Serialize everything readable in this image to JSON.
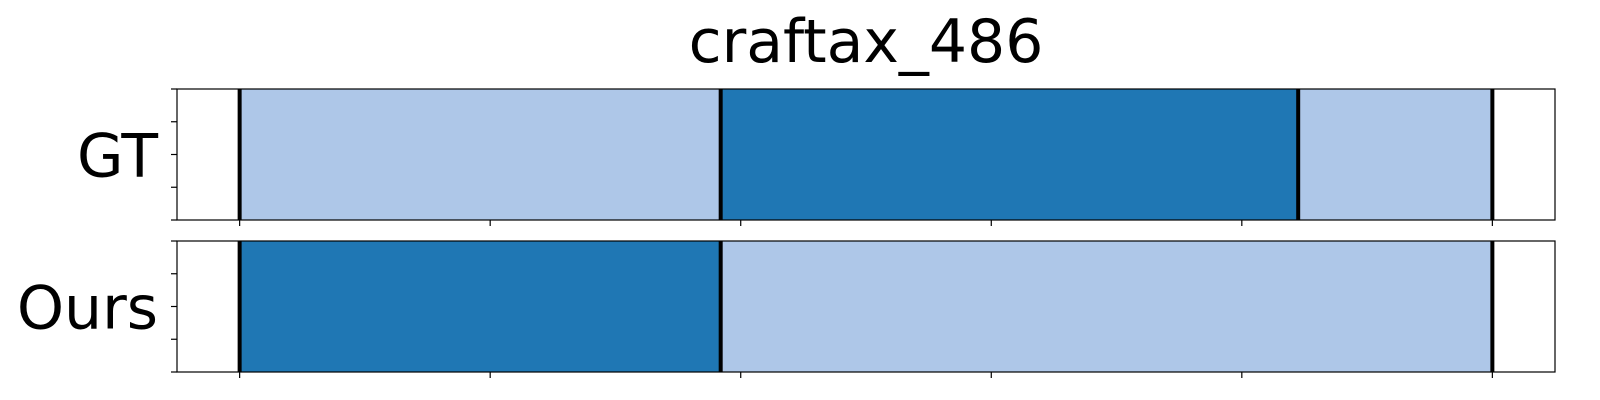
{
  "chart_data": {
    "type": "bar",
    "title": "craftax_486",
    "orientation": "horizontal-timeline",
    "xlim": [
      -0.5,
      10.5
    ],
    "rows": [
      {
        "label": "GT",
        "segments": [
          {
            "start": 0.0,
            "end": 3.84,
            "color": "#aec7e8"
          },
          {
            "start": 3.84,
            "end": 8.45,
            "color": "#1f77b4"
          },
          {
            "start": 8.45,
            "end": 10.0,
            "color": "#aec7e8"
          }
        ],
        "boundaries": [
          0.0,
          3.84,
          8.45,
          10.0
        ]
      },
      {
        "label": "Ours",
        "segments": [
          {
            "start": 0.0,
            "end": 3.84,
            "color": "#1f77b4"
          },
          {
            "start": 3.84,
            "end": 10.0,
            "color": "#aec7e8"
          }
        ],
        "boundaries": [
          0.0,
          3.84,
          10.0
        ]
      }
    ],
    "x_ticks": [
      0,
      2,
      4,
      6,
      8,
      10
    ],
    "x_tick_labels_visible": false,
    "y_ticks_per_row": 5,
    "grid": false,
    "legend": "none"
  }
}
